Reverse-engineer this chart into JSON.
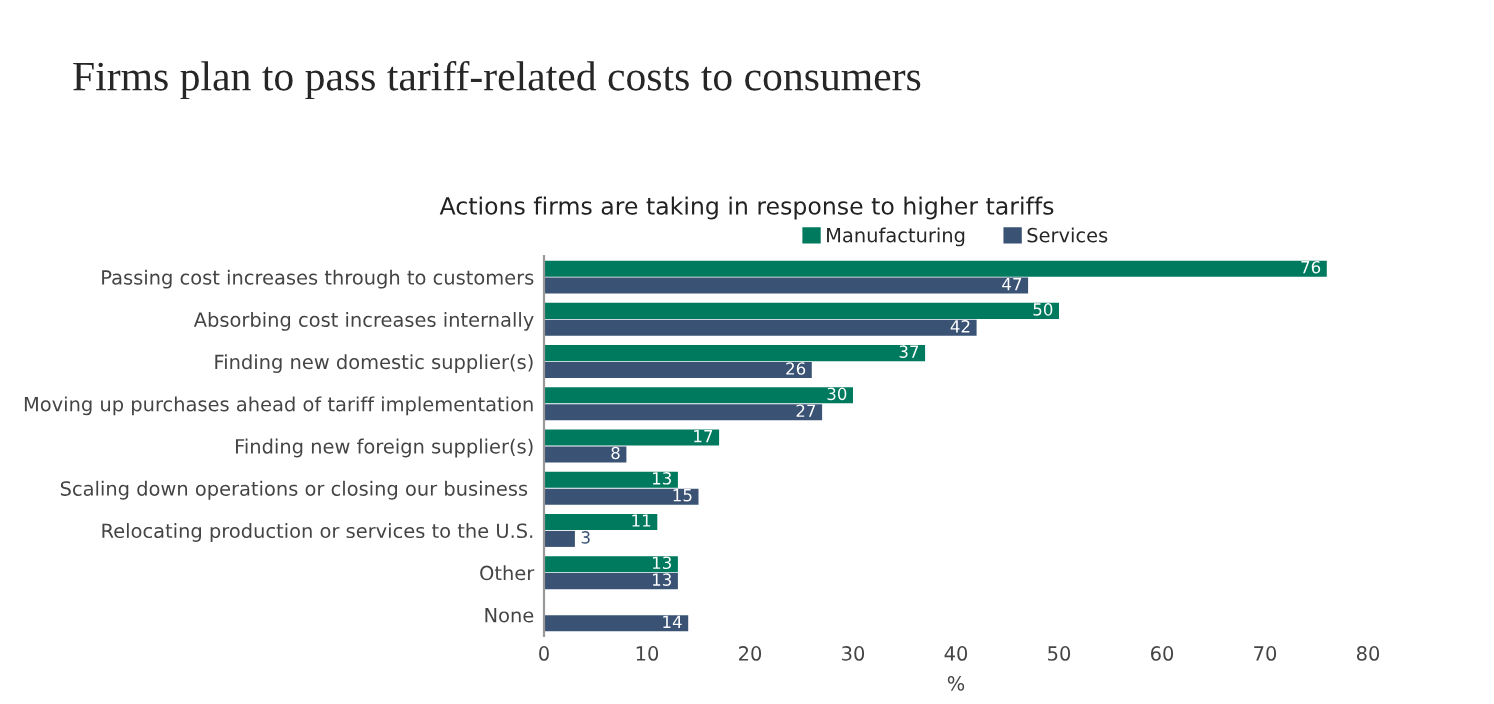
{
  "chart_data": {
    "type": "bar",
    "orientation": "horizontal",
    "title": "Firms plan to pass tariff-related costs to consumers",
    "subtitle": "Actions firms are taking in response to higher tariffs",
    "xlabel": "%",
    "categories": [
      "Passing cost increases through to customers",
      "Absorbing cost increases internally",
      "Finding new domestic supplier(s)",
      "Moving up purchases ahead of tariff implementation",
      "Finding new foreign supplier(s)",
      "Scaling down operations or closing our business ",
      "Relocating production or services to the U.S.",
      "Other",
      "None"
    ],
    "series": [
      {
        "name": "Manufacturing",
        "color": "#007a5e",
        "values": [
          76,
          50,
          37,
          30,
          17,
          13,
          11,
          13,
          null
        ]
      },
      {
        "name": "Services",
        "color": "#3a5374",
        "values": [
          47,
          42,
          26,
          27,
          8,
          15,
          3,
          13,
          14
        ]
      }
    ],
    "xlim": [
      0,
      80
    ],
    "xticks": [
      0,
      10,
      20,
      30,
      40,
      50,
      60,
      70,
      80
    ],
    "data_labels": true,
    "legend": "top",
    "grid": false
  }
}
